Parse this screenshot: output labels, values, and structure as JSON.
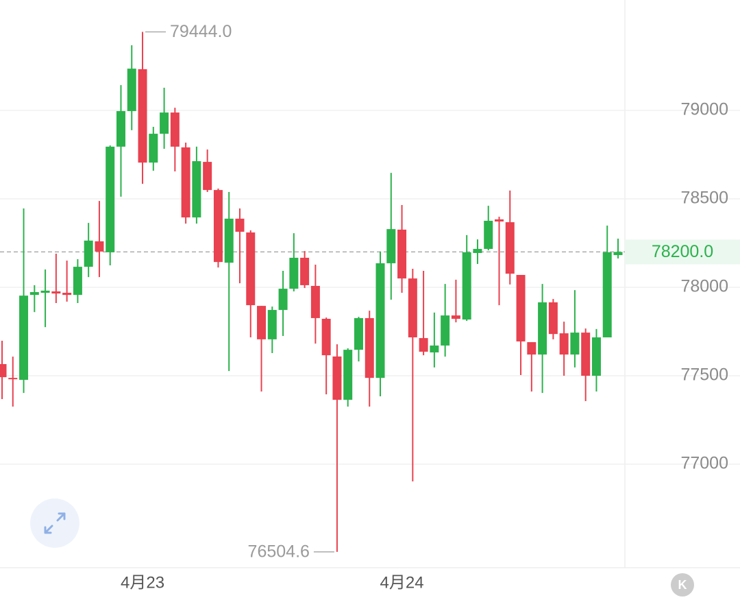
{
  "chart_data": {
    "type": "candlestick",
    "categories": [
      null,
      null,
      null,
      null,
      null,
      null,
      null,
      null,
      null,
      null,
      null,
      null,
      null,
      "4月23",
      null,
      null,
      null,
      null,
      null,
      null,
      null,
      null,
      null,
      null,
      null,
      null,
      null,
      null,
      null,
      null,
      null,
      null,
      null,
      null,
      null,
      null,
      null,
      "4月24",
      null,
      null,
      null,
      null,
      null,
      null,
      null,
      null,
      null,
      null,
      null,
      null,
      null,
      null,
      null,
      null,
      null,
      null,
      null,
      null
    ],
    "open": [
      77566,
      77488,
      77477,
      77957,
      77969,
      77977,
      77969,
      77957,
      78116,
      78260,
      78198,
      78795,
      78996,
      79233,
      78705,
      78868,
      78988,
      78791,
      78395,
      78709,
      78550,
      78139,
      78388,
      78310,
      77895,
      77706,
      77872,
      77992,
      78167,
      78008,
      77822,
      77609,
      77364,
      77647,
      77826,
      77488,
      78136,
      78326,
      78050,
      77713,
      77632,
      77671,
      77841,
      77818,
      78194,
      78217,
      78384,
      78368,
      78070,
      77690,
      77620,
      77915,
      77740,
      77620,
      77744,
      77500,
      77717,
      78182
    ],
    "high": [
      77698,
      77608,
      78446,
      78012,
      78101,
      78190,
      78151,
      78159,
      78364,
      78488,
      78802,
      79143,
      79368,
      79444,
      78907,
      79128,
      79015,
      78818,
      78795,
      78779,
      78558,
      78539,
      78446,
      78322,
      77895,
      77891,
      78093,
      78306,
      78205,
      78128,
      77829,
      77678,
      77655,
      77833,
      77868,
      78202,
      78647,
      78465,
      78105,
      78093,
      77857,
      78019,
      78043,
      78295,
      78271,
      78461,
      78399,
      78547,
      78070,
      77690,
      78019,
      77934,
      77806,
      77984,
      77767,
      77764,
      78349,
      78275
    ],
    "low": [
      77368,
      77326,
      77403,
      77860,
      77775,
      77911,
      77919,
      77911,
      78058,
      78058,
      78124,
      78512,
      78888,
      78585,
      78659,
      78783,
      78655,
      78360,
      78360,
      78539,
      78112,
      77527,
      78023,
      77717,
      77411,
      77628,
      77725,
      77977,
      77996,
      77682,
      77395,
      76504.6,
      77326,
      77581,
      77326,
      77384,
      77930,
      77969,
      76903,
      77616,
      77547,
      77608,
      77802,
      77810,
      78132,
      78209,
      77899,
      78016,
      77504,
      77411,
      77403,
      77706,
      77500,
      77547,
      77357,
      77411,
      77717,
      78163
    ],
    "close": [
      77492,
      77481,
      77953,
      77973,
      77981,
      77965,
      77957,
      78116,
      78264,
      78202,
      78795,
      78996,
      79236,
      78705,
      78868,
      78988,
      78795,
      78395,
      78713,
      78550,
      78143,
      78388,
      78314,
      77899,
      77706,
      77872,
      77992,
      78167,
      78012,
      77826,
      77616,
      77364,
      77647,
      77826,
      77488,
      78136,
      78329,
      78050,
      77717,
      77636,
      77671,
      77841,
      77822,
      78198,
      78217,
      78376,
      78372,
      78077,
      77694,
      77620,
      77915,
      77736,
      77620,
      77744,
      77500,
      77717,
      78198,
      78200
    ],
    "up_color": "#2bb24c",
    "down_color": "#e8414f",
    "ylim": [
      76415,
      79624
    ],
    "yticks": [
      77000,
      77500,
      78000,
      78500,
      79000
    ],
    "grid": true,
    "max_label": "79444.0",
    "min_label": "76504.6",
    "last_price": {
      "value": 78200,
      "label": "78200.0"
    },
    "kline_button": "K"
  }
}
